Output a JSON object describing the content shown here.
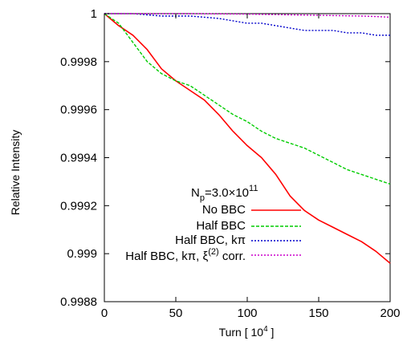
{
  "chart_data": {
    "type": "line",
    "xlabel_main": "Turn [ 10",
    "xlabel_sup": "4",
    "xlabel_end": " ]",
    "ylabel": "Relative Intensity",
    "xlim": [
      0,
      200
    ],
    "ylim": [
      0.9988,
      1.0
    ],
    "x_ticks": [
      0,
      50,
      100,
      150,
      200
    ],
    "x_tick_labels": [
      "0",
      "50",
      "100",
      "150",
      "200"
    ],
    "y_ticks": [
      0.9988,
      0.999,
      0.9992,
      0.9994,
      0.9996,
      0.9998,
      1.0
    ],
    "y_tick_labels": [
      "0.9988",
      "0.999",
      "0.9992",
      "0.9994",
      "0.9996",
      "0.9998",
      "1"
    ],
    "grid": false,
    "legend_title": {
      "base": "N",
      "sub": "p",
      "mid": "=3.0×10",
      "sup": "11"
    },
    "series": [
      {
        "name": "No   BBC",
        "color": "#ff0000",
        "dash": "solid",
        "x": [
          0,
          10,
          20,
          30,
          40,
          50,
          60,
          70,
          80,
          90,
          100,
          110,
          120,
          130,
          140,
          150,
          160,
          170,
          180,
          190,
          200
        ],
        "y": [
          1.0,
          0.99995,
          0.99991,
          0.99985,
          0.99977,
          0.99972,
          0.99968,
          0.99964,
          0.99958,
          0.99951,
          0.99945,
          0.9994,
          0.99933,
          0.99924,
          0.99918,
          0.99914,
          0.99911,
          0.99908,
          0.99905,
          0.99901,
          0.99896
        ]
      },
      {
        "name": "Half BBC",
        "color": "#00cc00",
        "dash": "dashed",
        "x": [
          0,
          10,
          20,
          30,
          40,
          50,
          60,
          70,
          80,
          90,
          100,
          110,
          120,
          130,
          140,
          150,
          160,
          170,
          180,
          190,
          200
        ],
        "y": [
          1.0,
          0.99996,
          0.99988,
          0.9998,
          0.99975,
          0.99972,
          0.9997,
          0.99966,
          0.99962,
          0.99958,
          0.99955,
          0.99951,
          0.99948,
          0.99946,
          0.99944,
          0.99941,
          0.99938,
          0.99935,
          0.99933,
          0.99931,
          0.99929
        ]
      },
      {
        "name": "Half BBC, kπ",
        "color": "#0000cc",
        "dash": "dotted",
        "x": [
          0,
          20,
          40,
          60,
          80,
          90,
          100,
          110,
          120,
          130,
          140,
          150,
          160,
          170,
          180,
          190,
          200
        ],
        "y": [
          1.0,
          1.0,
          0.99999,
          0.99999,
          0.99998,
          0.99997,
          0.99996,
          0.99996,
          0.99995,
          0.99994,
          0.99993,
          0.99993,
          0.99993,
          0.99992,
          0.99992,
          0.99991,
          0.99991
        ]
      },
      {
        "name_base": "Half BBC,  kπ, ξ",
        "name_sup": "(2)",
        "name_end": " corr.",
        "color": "#cc00cc",
        "dash": "dotted",
        "x": [
          0,
          20,
          40,
          60,
          80,
          100,
          120,
          140,
          160,
          180,
          190,
          200
        ],
        "y": [
          1.0,
          1.0,
          1.0,
          1.0,
          0.999999,
          0.999998,
          0.999996,
          0.999994,
          0.999992,
          0.99999,
          0.999988,
          0.999985
        ]
      }
    ]
  }
}
